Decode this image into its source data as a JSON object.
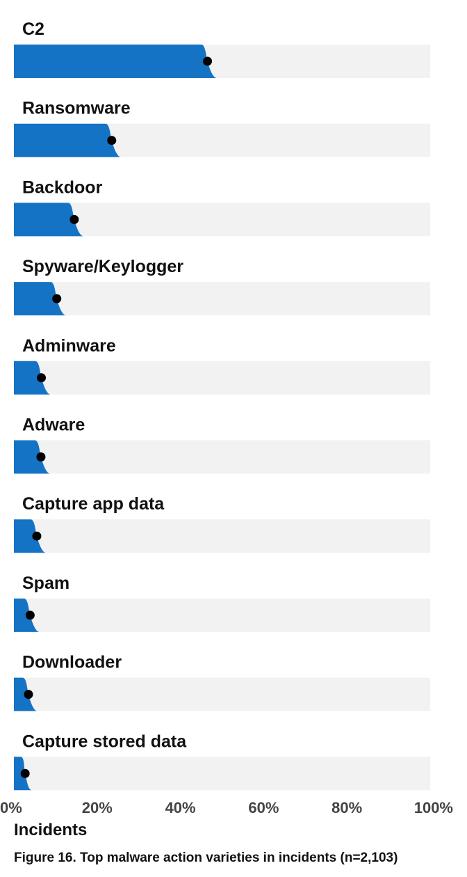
{
  "chart_data": {
    "type": "bar",
    "categories": [
      "C2",
      "Ransomware",
      "Backdoor",
      "Spyware/Keylogger",
      "Adminware",
      "Adware",
      "Capture app data",
      "Spam",
      "Downloader",
      "Capture stored data"
    ],
    "values": [
      46.5,
      23.5,
      14.5,
      10.3,
      6.6,
      6.5,
      5.5,
      3.9,
      3.5,
      2.7
    ],
    "xlim": [
      0,
      100
    ],
    "xticks": [
      "0%",
      "20%",
      "40%",
      "60%",
      "80%",
      "100%"
    ],
    "xlabel": "Incidents",
    "caption": "Figure 16. Top malware action varieties in incidents (n=2,103)",
    "orientation": "horizontal",
    "colors": {
      "bar": "#1473C5",
      "track": "#F2F2F2",
      "point": "#000000"
    }
  }
}
